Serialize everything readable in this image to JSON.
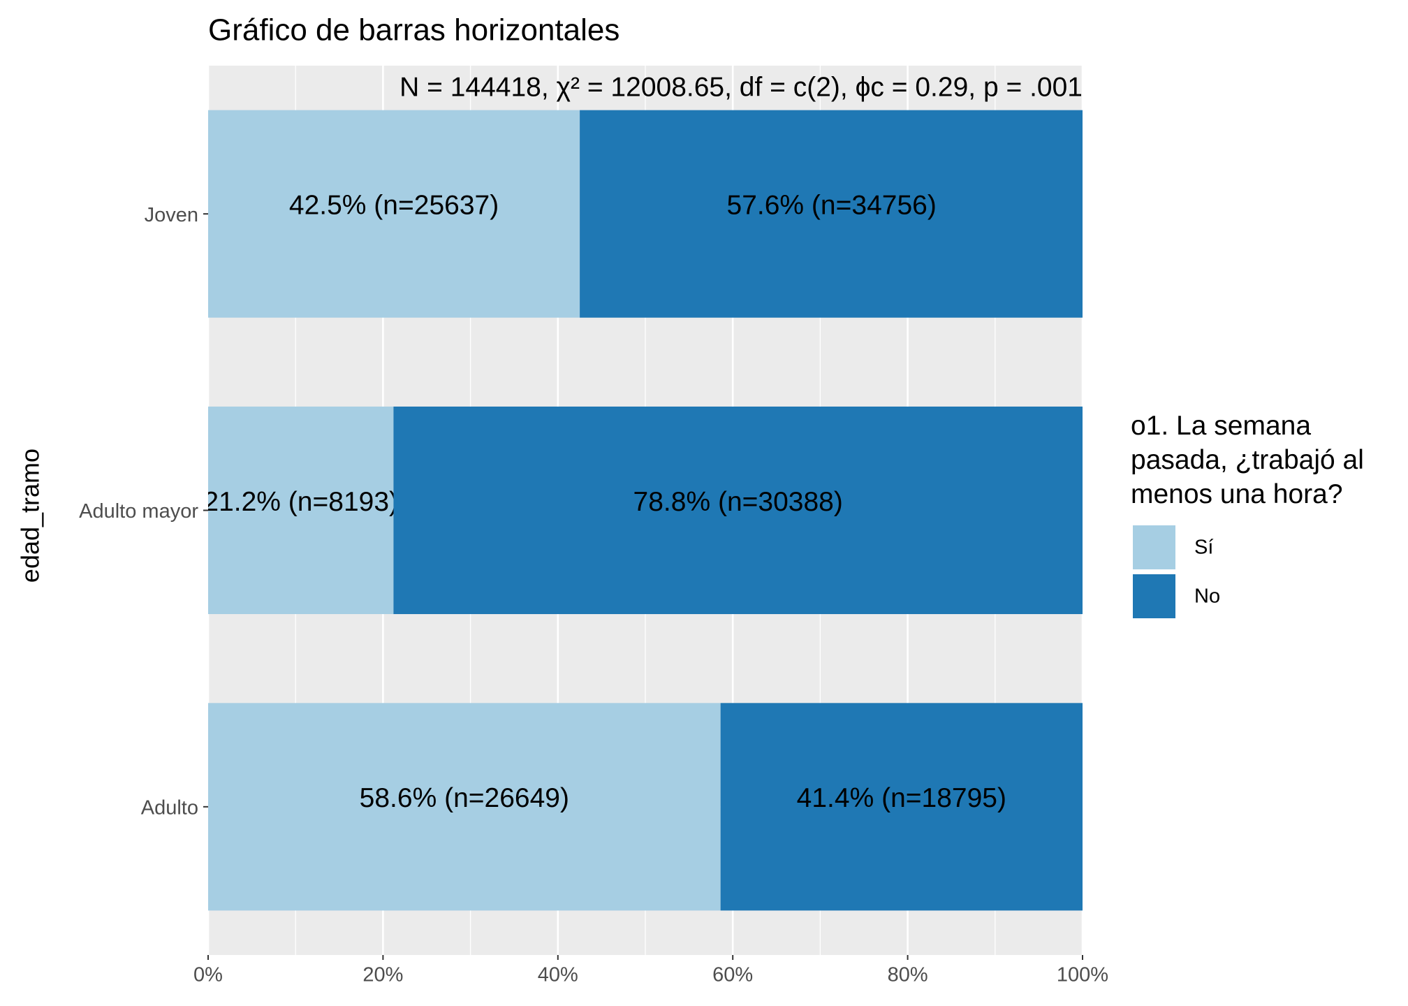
{
  "chart_data": {
    "type": "stacked_bar_horizontal",
    "title": "Gráfico de barras horizontales",
    "subtitle": "N = 144418,  χ² = 12008.65,  df = c(2),  ϕc = 0.29,  p = .001",
    "y_axis_label": "edad_tramo",
    "categories": [
      "Joven",
      "Adulto mayor",
      "Adulto"
    ],
    "series": [
      {
        "name": "Sí",
        "color": "#a6cee3",
        "values": [
          42.5,
          21.2,
          58.6
        ],
        "value_labels": [
          "42.5% (n=25637)",
          "21.2% (n=8193)",
          "58.6% (n=26649)"
        ]
      },
      {
        "name": "No",
        "color": "#1f78b4",
        "values": [
          57.6,
          78.8,
          41.4
        ],
        "value_labels": [
          "57.6% (n=34756)",
          "78.8% (n=30388)",
          "41.4% (n=18795)"
        ]
      }
    ],
    "legend_title": "o1. La semana\npasada, ¿trabajó al\nmenos una hora?",
    "legend_position": "right",
    "xlim": [
      0,
      100
    ],
    "xticks": [
      {
        "value": 0,
        "label": "0%"
      },
      {
        "value": 20,
        "label": "20%"
      },
      {
        "value": 40,
        "label": "40%"
      },
      {
        "value": 60,
        "label": "60%"
      },
      {
        "value": 80,
        "label": "80%"
      },
      {
        "value": 100,
        "label": "100%"
      }
    ],
    "minor_xticks": [
      10,
      30,
      50,
      70,
      90
    ],
    "grid": true
  }
}
